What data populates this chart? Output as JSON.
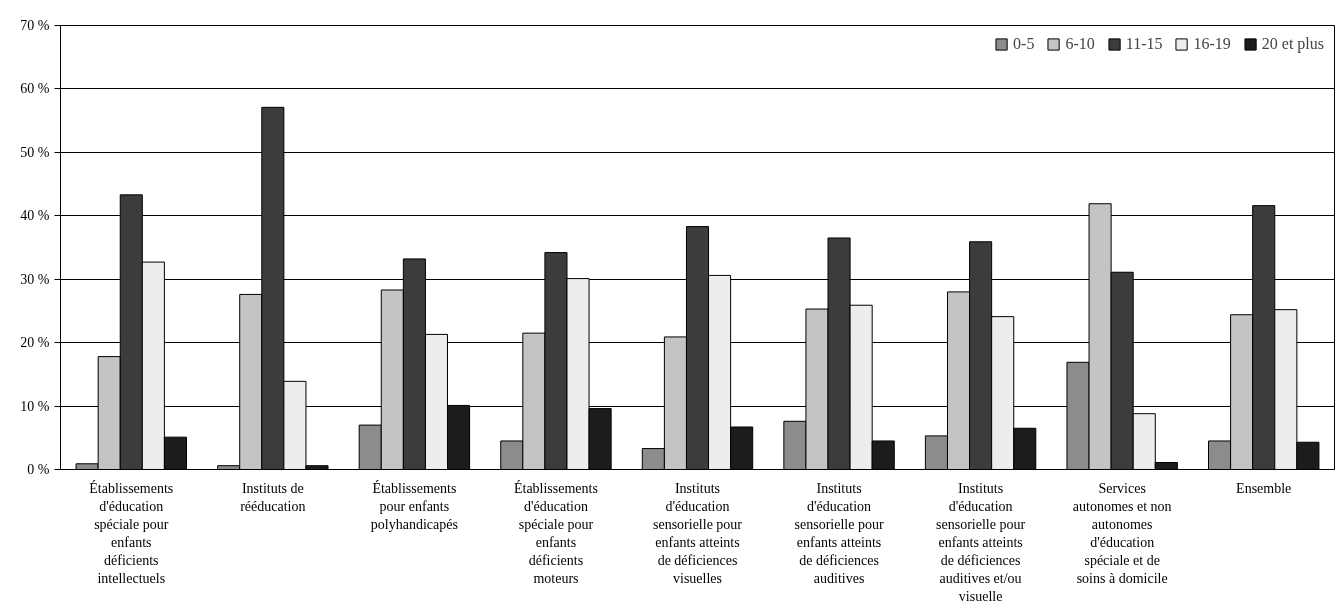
{
  "chart_data": {
    "type": "bar",
    "categories": [
      "Établissements d'éducation spéciale pour enfants déficients intellectuels",
      "Instituts de rééducation",
      "Établissements pour enfants polyhandicapés",
      "Établissements d'éducation spéciale pour enfants déficients moteurs",
      "Instituts d'éducation sensorielle pour enfants atteints de déficiences visuelles",
      "Instituts d'éducation sensorielle pour enfants atteints de déficiences auditives",
      "Instituts d'éducation sensorielle pour enfants atteints de déficiences auditives et/ou visuelle",
      "Services autonomes et non autonomes d'éducation spéciale et de soins à domicile",
      "Ensemble"
    ],
    "series": [
      {
        "name": "0-5",
        "color": "#8c8c8c",
        "values": [
          0.9,
          0.6,
          7.0,
          4.5,
          3.3,
          7.6,
          5.3,
          16.9,
          4.5
        ]
      },
      {
        "name": "6-10",
        "color": "#c4c4c4",
        "values": [
          17.8,
          27.6,
          28.3,
          21.5,
          20.9,
          25.3,
          28.0,
          41.9,
          24.4
        ]
      },
      {
        "name": "11-15",
        "color": "#3c3c3c",
        "values": [
          43.3,
          57.1,
          33.2,
          34.2,
          38.3,
          36.5,
          35.9,
          31.1,
          41.6
        ]
      },
      {
        "name": "16-19",
        "color": "#ededed",
        "values": [
          32.7,
          13.9,
          21.3,
          30.1,
          30.6,
          25.9,
          24.1,
          8.8,
          25.2
        ]
      },
      {
        "name": "20 et plus",
        "color": "#1c1c1c",
        "values": [
          5.1,
          0.6,
          10.1,
          9.6,
          6.7,
          4.5,
          6.5,
          1.1,
          4.3
        ]
      }
    ],
    "ylim": [
      0,
      70
    ],
    "yticks": [
      {
        "value": 0,
        "label": "0 %"
      },
      {
        "value": 10,
        "label": "10 %"
      },
      {
        "value": 20,
        "label": "20 %"
      },
      {
        "value": 30,
        "label": "30 %"
      },
      {
        "value": 40,
        "label": "40 %"
      },
      {
        "value": 50,
        "label": "50 %"
      },
      {
        "value": 60,
        "label": "60 %"
      },
      {
        "value": 70,
        "label": "70 %"
      }
    ],
    "grid": "y",
    "legend": "top right"
  }
}
